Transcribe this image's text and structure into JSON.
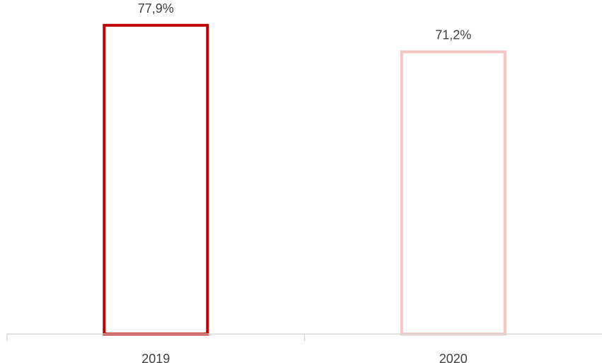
{
  "chart_data": {
    "type": "bar",
    "categories": [
      "2019",
      "2020"
    ],
    "values": [
      77.9,
      71.2
    ],
    "data_labels": [
      "77,9%",
      "71,2%"
    ],
    "title": "",
    "xlabel": "",
    "ylabel": "",
    "ylim": [
      0,
      80
    ],
    "grid": false,
    "legend": "none",
    "bar_style": "outline",
    "bar_colors": [
      "#c00000",
      "#f4c7c3"
    ],
    "axis_color": "#d9d9d9",
    "label_color": "#404040"
  }
}
